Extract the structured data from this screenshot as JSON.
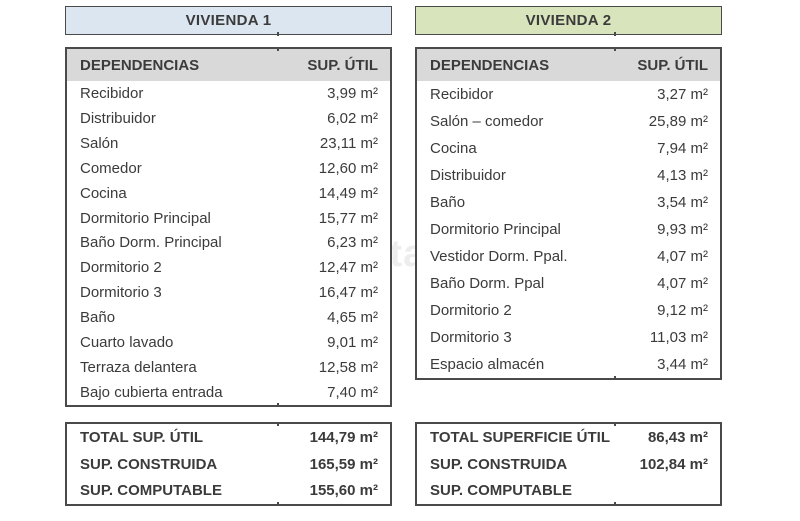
{
  "watermark": {
    "text": "habitaclia"
  },
  "colors": {
    "vivienda1_title_bg": "#dce6f1",
    "vivienda2_title_bg": "#d8e4bc",
    "table_header_bg": "#d9d9d9",
    "border": "#4a4a4a",
    "text": "#3b3b3b",
    "background": "#ffffff"
  },
  "vivienda1": {
    "title": "VIVIENDA 1",
    "columns": {
      "dependencias": "DEPENDENCIAS",
      "sup_util": "SUP. ÚTIL"
    },
    "rows": [
      {
        "label": "Recibidor",
        "value": "3,99 m²"
      },
      {
        "label": "Distribuidor",
        "value": "6,02 m²"
      },
      {
        "label": "Salón",
        "value": "23,11 m²"
      },
      {
        "label": "Comedor",
        "value": "12,60 m²"
      },
      {
        "label": "Cocina",
        "value": "14,49 m²"
      },
      {
        "label": "Dormitorio Principal",
        "value": "15,77 m²"
      },
      {
        "label": "Baño Dorm. Principal",
        "value": "6,23 m²"
      },
      {
        "label": "Dormitorio 2",
        "value": "12,47 m²"
      },
      {
        "label": "Dormitorio 3",
        "value": "16,47 m²"
      },
      {
        "label": "Baño",
        "value": "4,65 m²"
      },
      {
        "label": "Cuarto lavado",
        "value": "9,01 m²"
      },
      {
        "label": "Terraza delantera",
        "value": "12,58 m²"
      },
      {
        "label": "Bajo cubierta entrada",
        "value": "7,40 m²"
      }
    ],
    "totals": [
      {
        "label": "TOTAL SUP. ÚTIL",
        "value": "144,79 m²"
      },
      {
        "label": "SUP. CONSTRUIDA",
        "value": "165,59 m²"
      },
      {
        "label": "SUP. COMPUTABLE",
        "value": "155,60 m²"
      }
    ]
  },
  "vivienda2": {
    "title": "VIVIENDA 2",
    "columns": {
      "dependencias": "DEPENDENCIAS",
      "sup_util": "SUP. ÚTIL"
    },
    "rows": [
      {
        "label": "Recibidor",
        "value": "3,27 m²"
      },
      {
        "label": "Salón – comedor",
        "value": "25,89 m²"
      },
      {
        "label": "Cocina",
        "value": "7,94 m²"
      },
      {
        "label": "Distribuidor",
        "value": "4,13 m²"
      },
      {
        "label": "Baño",
        "value": "3,54 m²"
      },
      {
        "label": "Dormitorio Principal",
        "value": "9,93 m²"
      },
      {
        "label": "Vestidor Dorm. Ppal.",
        "value": "4,07 m²"
      },
      {
        "label": "Baño Dorm. Ppal",
        "value": "4,07 m²"
      },
      {
        "label": "Dormitorio 2",
        "value": "9,12 m²"
      },
      {
        "label": "Dormitorio 3",
        "value": "11,03 m²"
      },
      {
        "label": "Espacio almacén",
        "value": "3,44 m²"
      }
    ],
    "totals": [
      {
        "label": "TOTAL SUPERFICIE ÚTIL",
        "value": "86,43 m²"
      },
      {
        "label": "SUP. CONSTRUIDA",
        "value": "102,84 m²"
      },
      {
        "label": "SUP. COMPUTABLE",
        "value": ""
      }
    ]
  }
}
